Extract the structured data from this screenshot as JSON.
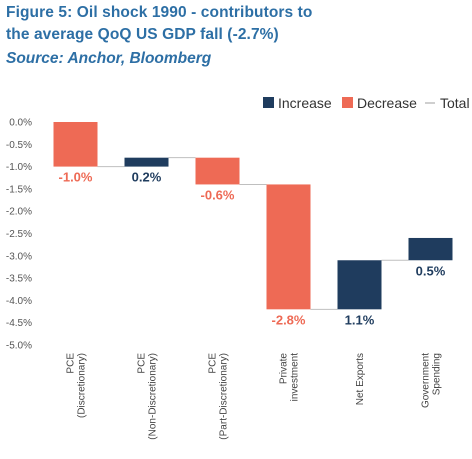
{
  "header": {
    "title_line1": "Figure 5: Oil shock 1990 - contributors to",
    "title_line2": "the average QoQ US GDP fall (-2.7%)",
    "source": "Source: Anchor, Bloomberg"
  },
  "chart_data": {
    "type": "waterfall",
    "categories": [
      [
        "PCE",
        "(Discretionary)"
      ],
      [
        "PCE",
        "(Non-Discretionary)"
      ],
      [
        "PCE",
        "(Part-Discretionary)"
      ],
      [
        "Private",
        "investment"
      ],
      [
        "Net Exports"
      ],
      [
        "Government",
        "Spending"
      ]
    ],
    "values": [
      -1.0,
      0.2,
      -0.6,
      -2.8,
      1.1,
      0.5
    ],
    "value_labels": [
      "-1.0%",
      "0.2%",
      "-0.6%",
      "-2.8%",
      "1.1%",
      "0.5%"
    ],
    "ylim": [
      -5.0,
      0.0
    ],
    "yticks": [
      0.0,
      -0.5,
      -1.0,
      -1.5,
      -2.0,
      -2.5,
      -3.0,
      -3.5,
      -4.0,
      -4.5,
      -5.0
    ],
    "ytick_labels": [
      "0.0%",
      "-0.5%",
      "-1.0%",
      "-1.5%",
      "-2.0%",
      "-2.5%",
      "-3.0%",
      "-3.5%",
      "-4.0%",
      "-4.5%",
      "-5.0%"
    ],
    "legend": {
      "position": "top-right",
      "items": [
        {
          "label": "Increase",
          "kind": "increase"
        },
        {
          "label": "Decrease",
          "kind": "decrease"
        },
        {
          "label": "Total",
          "kind": "total"
        }
      ]
    },
    "colors": {
      "increase": "#1f3c5e",
      "decrease": "#ee6a55",
      "total": "#bfbfbf",
      "decrease_label": "#ee6a55",
      "increase_label": "#1f3c5e"
    },
    "grid": false
  }
}
